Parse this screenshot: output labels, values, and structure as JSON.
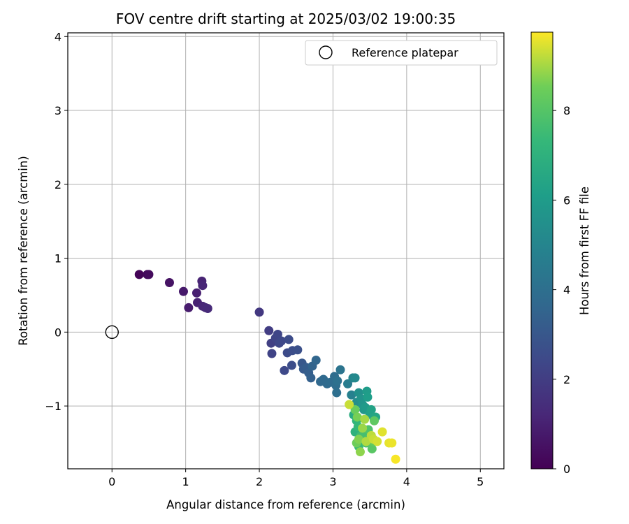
{
  "chart_data": {
    "type": "scatter",
    "title": "FOV centre drift starting at 2025/03/02 19:00:35",
    "xlabel": "Angular distance from reference (arcmin)",
    "ylabel": "Rotation from reference (arcmin)",
    "xlim": [
      -0.6,
      5.32
    ],
    "ylim": [
      -1.85,
      4.05
    ],
    "xticks": [
      0,
      1,
      2,
      3,
      4,
      5
    ],
    "xtick_labels": [
      "0",
      "1",
      "2",
      "3",
      "4",
      "5"
    ],
    "yticks": [
      -1,
      0,
      1,
      2,
      3,
      4
    ],
    "ytick_labels": [
      "−1",
      "0",
      "1",
      "2",
      "3",
      "4"
    ],
    "grid": true,
    "legend": {
      "position": "top-right",
      "entries": [
        "Reference platepar"
      ]
    },
    "reference_point": {
      "label": "Reference platepar",
      "x": 0,
      "y": 0
    },
    "colorbar": {
      "label": "Hours from first FF file",
      "colormap": "viridis",
      "range": [
        0,
        9.75
      ],
      "ticks": [
        0,
        2,
        4,
        6,
        8
      ],
      "tick_labels": [
        "0",
        "2",
        "4",
        "6",
        "8"
      ]
    },
    "series": [
      {
        "color_by": "hours",
        "x": [
          0.37,
          0.48,
          0.5,
          0.78,
          0.97,
          1.04,
          1.15,
          1.16,
          1.22,
          1.23,
          1.23,
          1.27,
          1.3,
          2.0,
          2.13,
          2.16,
          2.17,
          2.22,
          2.25,
          2.27,
          2.3,
          2.34,
          2.38,
          2.4,
          2.44,
          2.45,
          2.52,
          2.58,
          2.6,
          2.64,
          2.67,
          2.7,
          2.72,
          2.77,
          2.83,
          2.87,
          2.92,
          2.96,
          3.02,
          3.04,
          3.05,
          3.06,
          3.1,
          3.2,
          3.25,
          3.27,
          3.3,
          3.32,
          3.35,
          3.38,
          3.4,
          3.42,
          3.44,
          3.46,
          3.47,
          3.5,
          3.52,
          3.55,
          3.58,
          3.28,
          3.3,
          3.32,
          3.34,
          3.35,
          3.38,
          3.4,
          3.42,
          3.45,
          3.48,
          3.5,
          3.53,
          3.56,
          3.55,
          3.3,
          3.32,
          3.33,
          3.35,
          3.37,
          3.4,
          3.43,
          3.45,
          3.52,
          3.55,
          3.6,
          3.67,
          3.76,
          3.8,
          3.85,
          3.22
        ],
        "y": [
          0.78,
          0.78,
          0.78,
          0.67,
          0.55,
          0.33,
          0.53,
          0.4,
          0.69,
          0.63,
          0.35,
          0.33,
          0.32,
          0.27,
          0.02,
          -0.15,
          -0.29,
          -0.08,
          -0.03,
          -0.15,
          -0.12,
          -0.52,
          -0.28,
          -0.1,
          -0.45,
          -0.25,
          -0.24,
          -0.42,
          -0.5,
          -0.48,
          -0.55,
          -0.62,
          -0.46,
          -0.38,
          -0.67,
          -0.64,
          -0.7,
          -0.68,
          -0.6,
          -0.72,
          -0.82,
          -0.66,
          -0.51,
          -0.7,
          -0.85,
          -0.62,
          -0.62,
          -0.95,
          -0.82,
          -0.9,
          -0.98,
          -1.05,
          -1.02,
          -0.8,
          -0.88,
          -1.1,
          -1.05,
          -1.15,
          -1.15,
          -1.12,
          -1.35,
          -1.2,
          -1.28,
          -1.55,
          -1.4,
          -1.45,
          -1.38,
          -1.5,
          -1.32,
          -1.47,
          -1.58,
          -1.2,
          -1.48,
          -1.05,
          -1.5,
          -1.15,
          -1.45,
          -1.62,
          -1.3,
          -1.18,
          -1.48,
          -1.4,
          -1.45,
          -1.48,
          -1.35,
          -1.5,
          -1.5,
          -1.72,
          -0.98
        ],
        "hours": [
          0.1,
          0.25,
          0.3,
          0.55,
          0.75,
          0.85,
          0.95,
          1.0,
          1.1,
          1.15,
          1.2,
          1.25,
          1.3,
          1.8,
          2.0,
          2.1,
          2.2,
          2.25,
          2.3,
          2.35,
          2.4,
          2.45,
          2.5,
          2.55,
          2.6,
          2.65,
          2.7,
          3.0,
          3.1,
          3.2,
          3.3,
          3.4,
          3.5,
          3.6,
          3.7,
          3.75,
          3.8,
          3.85,
          3.9,
          3.95,
          4.0,
          4.1,
          4.2,
          4.6,
          4.8,
          5.0,
          5.2,
          5.4,
          5.5,
          5.6,
          5.7,
          5.8,
          5.9,
          6.0,
          6.1,
          6.2,
          6.3,
          6.4,
          6.5,
          6.8,
          7.0,
          7.2,
          7.3,
          7.4,
          7.5,
          7.6,
          7.7,
          7.8,
          7.9,
          8.0,
          8.1,
          8.2,
          8.3,
          8.4,
          8.5,
          8.6,
          8.7,
          8.8,
          8.9,
          9.0,
          9.1,
          9.2,
          9.3,
          9.4,
          9.5,
          9.55,
          9.6,
          9.7,
          9.3
        ]
      }
    ]
  }
}
